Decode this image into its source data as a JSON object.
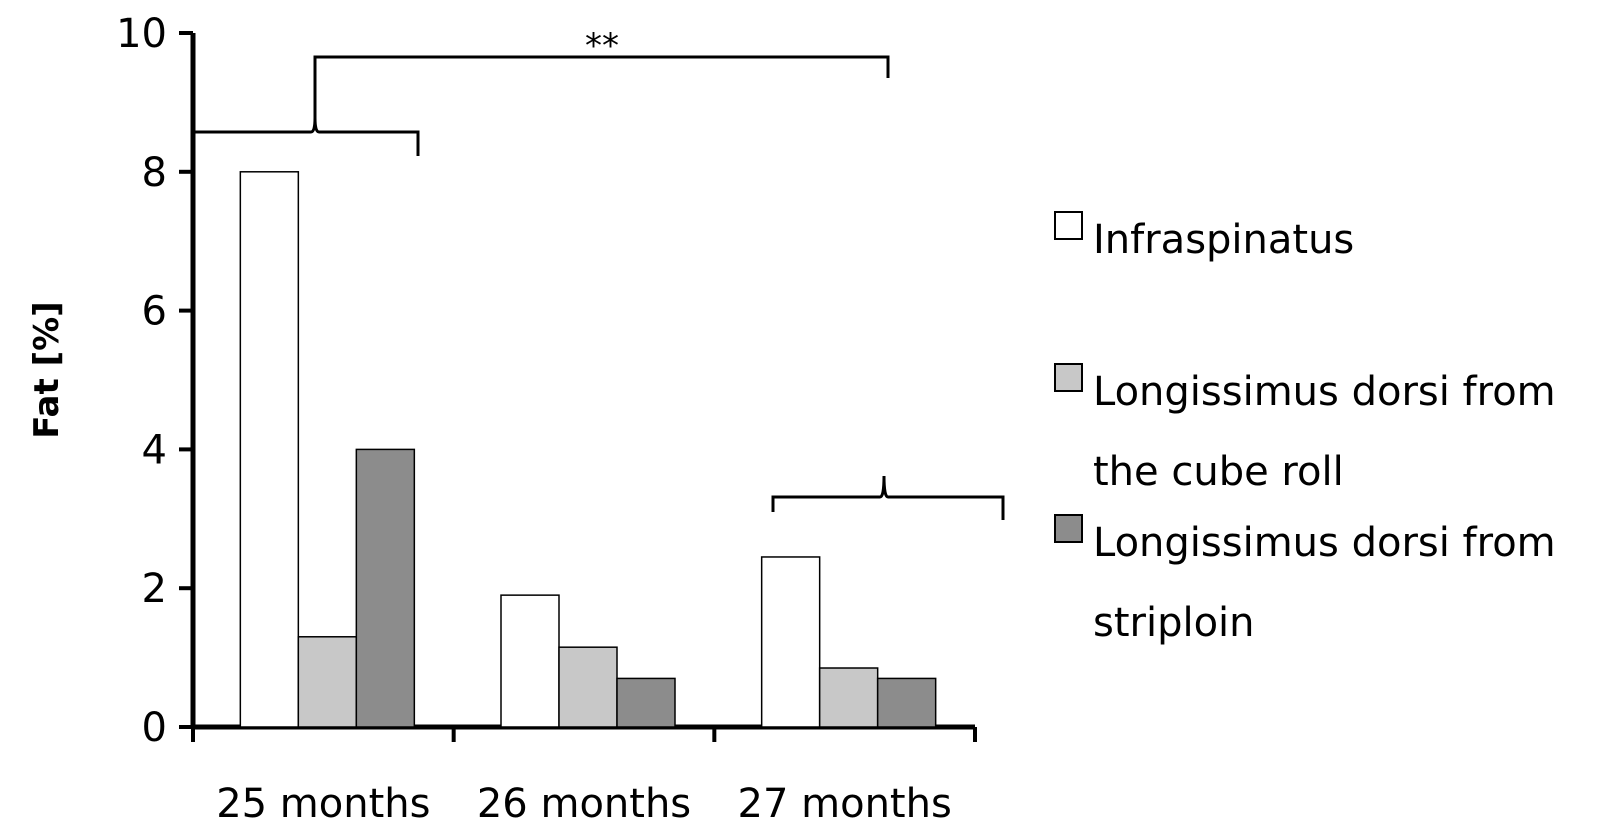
{
  "chart_data": {
    "type": "bar",
    "title": "",
    "xlabel": "",
    "ylabel": "Fat [%]",
    "ylim": [
      0,
      10
    ],
    "yticks": [
      "0",
      "2",
      "4",
      "6",
      "8",
      "10"
    ],
    "categories": [
      "25 months",
      "26 months",
      "27 months"
    ],
    "series": [
      {
        "name": "Infraspinatus",
        "legend": [
          "Infraspinatus"
        ],
        "values": [
          8.0,
          1.9,
          2.45
        ],
        "color": "#ffffff"
      },
      {
        "name": "Longissimus dorsi from the cube roll",
        "legend": [
          "Longissimus dorsi from",
          "the cube roll"
        ],
        "values": [
          1.3,
          1.15,
          0.85
        ],
        "color": "#c8c8c8"
      },
      {
        "name": "Longissimus dorsi from striploin",
        "legend": [
          "Longissimus dorsi from",
          "striploin"
        ],
        "values": [
          4.0,
          0.7,
          0.7
        ],
        "color": "#8c8c8c"
      }
    ],
    "grid": false,
    "legend_position": "right",
    "annotations": [
      "**"
    ]
  }
}
